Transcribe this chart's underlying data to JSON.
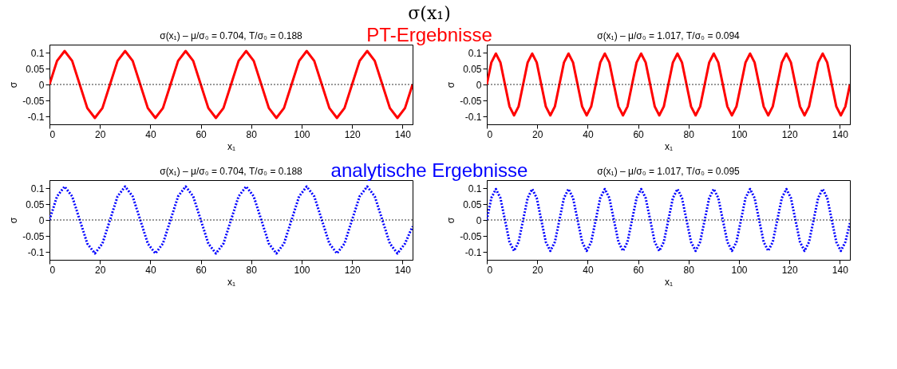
{
  "chart_data": [
    {
      "type": "line",
      "title": "σ(x₁)   –   μ/σ₀ = 0.704, T/σ₀ = 0.188",
      "xlabel": "x₁",
      "ylabel": "σ",
      "annotations": [
        "σ(x₁)",
        "PT-Ergebnisse"
      ],
      "x": [
        0,
        3,
        6,
        9,
        12,
        15,
        18,
        21,
        24,
        27,
        30,
        33,
        36,
        39,
        42,
        45,
        48,
        51,
        54,
        57,
        60,
        63,
        66,
        69,
        72,
        75,
        78,
        81,
        84,
        87,
        90,
        93,
        96,
        99,
        102,
        105,
        108,
        111,
        114,
        117,
        120,
        123,
        126,
        129,
        132,
        135,
        138,
        141,
        144
      ],
      "series": [
        {
          "color": "#ff0000",
          "line_style": "solid",
          "values": [
            0,
            0.074,
            0.105,
            0.074,
            0,
            -0.074,
            -0.105,
            -0.074,
            0,
            0.074,
            0.105,
            0.074,
            0,
            -0.074,
            -0.105,
            -0.074,
            0,
            0.074,
            0.105,
            0.074,
            0,
            -0.074,
            -0.105,
            -0.074,
            0,
            0.074,
            0.105,
            0.074,
            0,
            -0.074,
            -0.105,
            -0.074,
            0,
            0.074,
            0.105,
            0.074,
            0,
            -0.074,
            -0.105,
            -0.074,
            0,
            0.074,
            0.105,
            0.074,
            0,
            -0.074,
            -0.105,
            -0.074,
            0
          ]
        }
      ],
      "xlim": [
        0,
        144
      ],
      "ylim": [
        -0.125,
        0.125
      ],
      "xticks": [
        0,
        20,
        40,
        60,
        80,
        100,
        120,
        140
      ],
      "yticks": [
        -0.1,
        -0.05,
        0,
        0.05,
        0.1
      ],
      "ref_lines": [
        {
          "axis": "y",
          "value": 0,
          "color": "#000000",
          "line_style": "dotted"
        }
      ]
    },
    {
      "type": "line",
      "title": "σ(x₁)   –   μ/σ₀ = 1.017, T/σ₀ = 0.094",
      "xlabel": "x₁",
      "ylabel": "σ",
      "x": [
        0,
        1.8,
        3.6,
        5.4,
        7.2,
        9,
        10.8,
        12.6,
        14.4,
        16.2,
        18,
        19.8,
        21.6,
        23.4,
        25.2,
        27,
        28.8,
        30.6,
        32.4,
        34.2,
        36,
        37.8,
        39.6,
        41.4,
        43.2,
        45,
        46.8,
        48.6,
        50.4,
        52.2,
        54,
        55.8,
        57.6,
        59.4,
        61.2,
        63,
        64.8,
        66.6,
        68.4,
        70.2,
        72,
        73.8,
        75.6,
        77.4,
        79.2,
        81,
        82.8,
        84.6,
        86.4,
        88.2,
        90,
        91.8,
        93.6,
        95.4,
        97.2,
        99,
        100.8,
        102.6,
        104.4,
        106.2,
        108,
        109.8,
        111.6,
        113.4,
        115.2,
        117,
        118.8,
        120.6,
        122.4,
        124.2,
        126,
        127.8,
        129.6,
        131.4,
        133.2,
        135,
        136.8,
        138.6,
        140.4,
        142.2,
        144
      ],
      "series": [
        {
          "color": "#ff0000",
          "line_style": "solid",
          "values": [
            0,
            0.069,
            0.097,
            0.069,
            0,
            -0.069,
            -0.097,
            -0.069,
            0,
            0.069,
            0.097,
            0.069,
            0,
            -0.069,
            -0.097,
            -0.069,
            0,
            0.069,
            0.097,
            0.069,
            0,
            -0.069,
            -0.097,
            -0.069,
            0,
            0.069,
            0.097,
            0.069,
            0,
            -0.069,
            -0.097,
            -0.069,
            0,
            0.069,
            0.097,
            0.069,
            0,
            -0.069,
            -0.097,
            -0.069,
            0,
            0.069,
            0.097,
            0.069,
            0,
            -0.069,
            -0.097,
            -0.069,
            0,
            0.069,
            0.097,
            0.069,
            0,
            -0.069,
            -0.097,
            -0.069,
            0,
            0.069,
            0.097,
            0.069,
            0,
            -0.069,
            -0.097,
            -0.069,
            0,
            0.069,
            0.097,
            0.069,
            0,
            -0.069,
            -0.097,
            -0.069,
            0,
            0.069,
            0.097,
            0.069,
            0,
            -0.069,
            -0.097,
            -0.069,
            0
          ]
        }
      ],
      "xlim": [
        0,
        144
      ],
      "ylim": [
        -0.125,
        0.125
      ],
      "xticks": [
        0,
        20,
        40,
        60,
        80,
        100,
        120,
        140
      ],
      "yticks": [
        -0.1,
        -0.05,
        0,
        0.05,
        0.1
      ],
      "ref_lines": [
        {
          "axis": "y",
          "value": 0,
          "color": "#000000",
          "line_style": "dotted"
        }
      ]
    },
    {
      "type": "line",
      "title": "σ(x₁)   –   μ/σ₀ = 0.704, T/σ₀ = 0.188",
      "xlabel": "x₁",
      "ylabel": "σ",
      "annotations": [
        "analytische Ergebnisse"
      ],
      "x": [
        0,
        3,
        6,
        9,
        12,
        15,
        18,
        21,
        24,
        27,
        30,
        33,
        36,
        39,
        42,
        45,
        48,
        51,
        54,
        57,
        60,
        63,
        66,
        69,
        72,
        75,
        78,
        81,
        84,
        87,
        90,
        93,
        96,
        99,
        102,
        105,
        108,
        111,
        114,
        117,
        120,
        123,
        126,
        129,
        132,
        135,
        138,
        141,
        144
      ],
      "series": [
        {
          "color": "#0000ff",
          "line_style": "dotted",
          "values": [
            0,
            0.074,
            0.105,
            0.074,
            0,
            -0.074,
            -0.105,
            -0.074,
            0,
            0.074,
            0.105,
            0.074,
            0,
            -0.074,
            -0.105,
            -0.074,
            0,
            0.074,
            0.105,
            0.074,
            0,
            -0.074,
            -0.105,
            -0.074,
            0,
            0.074,
            0.105,
            0.074,
            0,
            -0.074,
            -0.105,
            -0.074,
            0,
            0.074,
            0.105,
            0.074,
            0,
            -0.074,
            -0.105,
            -0.074,
            0,
            0.074,
            0.105,
            0.074,
            0,
            -0.074,
            -0.105,
            -0.074,
            -0.02
          ]
        }
      ],
      "xlim": [
        0,
        144
      ],
      "ylim": [
        -0.125,
        0.125
      ],
      "xticks": [
        0,
        20,
        40,
        60,
        80,
        100,
        120,
        140
      ],
      "yticks": [
        -0.1,
        -0.05,
        0,
        0.05,
        0.1
      ],
      "ref_lines": [
        {
          "axis": "y",
          "value": 0,
          "color": "#000000",
          "line_style": "dotted"
        }
      ]
    },
    {
      "type": "line",
      "title": "σ(x₁)   –   μ/σ₀ = 1.017, T/σ₀ = 0.095",
      "xlabel": "x₁",
      "ylabel": "σ",
      "x": [
        0,
        1.8,
        3.6,
        5.4,
        7.2,
        9,
        10.8,
        12.6,
        14.4,
        16.2,
        18,
        19.8,
        21.6,
        23.4,
        25.2,
        27,
        28.8,
        30.6,
        32.4,
        34.2,
        36,
        37.8,
        39.6,
        41.4,
        43.2,
        45,
        46.8,
        48.6,
        50.4,
        52.2,
        54,
        55.8,
        57.6,
        59.4,
        61.2,
        63,
        64.8,
        66.6,
        68.4,
        70.2,
        72,
        73.8,
        75.6,
        77.4,
        79.2,
        81,
        82.8,
        84.6,
        86.4,
        88.2,
        90,
        91.8,
        93.6,
        95.4,
        97.2,
        99,
        100.8,
        102.6,
        104.4,
        106.2,
        108,
        109.8,
        111.6,
        113.4,
        115.2,
        117,
        118.8,
        120.6,
        122.4,
        124.2,
        126,
        127.8,
        129.6,
        131.4,
        133.2,
        135,
        136.8,
        138.6,
        140.4,
        142.2,
        144
      ],
      "series": [
        {
          "color": "#0000ff",
          "line_style": "dotted",
          "values": [
            0,
            0.069,
            0.097,
            0.069,
            0,
            -0.069,
            -0.097,
            -0.069,
            0,
            0.069,
            0.097,
            0.069,
            0,
            -0.069,
            -0.097,
            -0.069,
            0,
            0.069,
            0.097,
            0.069,
            0,
            -0.069,
            -0.097,
            -0.069,
            0,
            0.069,
            0.097,
            0.069,
            0,
            -0.069,
            -0.097,
            -0.069,
            0,
            0.069,
            0.097,
            0.069,
            0,
            -0.069,
            -0.097,
            -0.069,
            0,
            0.069,
            0.097,
            0.069,
            0,
            -0.069,
            -0.097,
            -0.069,
            0,
            0.069,
            0.097,
            0.069,
            0,
            -0.069,
            -0.097,
            -0.069,
            0,
            0.069,
            0.097,
            0.069,
            0,
            -0.069,
            -0.097,
            -0.069,
            0,
            0.069,
            0.097,
            0.069,
            0,
            -0.069,
            -0.097,
            -0.069,
            0,
            0.069,
            0.097,
            0.069,
            0,
            -0.069,
            -0.097,
            -0.069,
            -0.01
          ]
        }
      ],
      "xlim": [
        0,
        144
      ],
      "ylim": [
        -0.125,
        0.125
      ],
      "xticks": [
        0,
        20,
        40,
        60,
        80,
        100,
        120,
        140
      ],
      "yticks": [
        -0.1,
        -0.05,
        0,
        0.05,
        0.1
      ],
      "ref_lines": [
        {
          "axis": "y",
          "value": 0,
          "color": "#000000",
          "line_style": "dotted"
        }
      ]
    }
  ]
}
